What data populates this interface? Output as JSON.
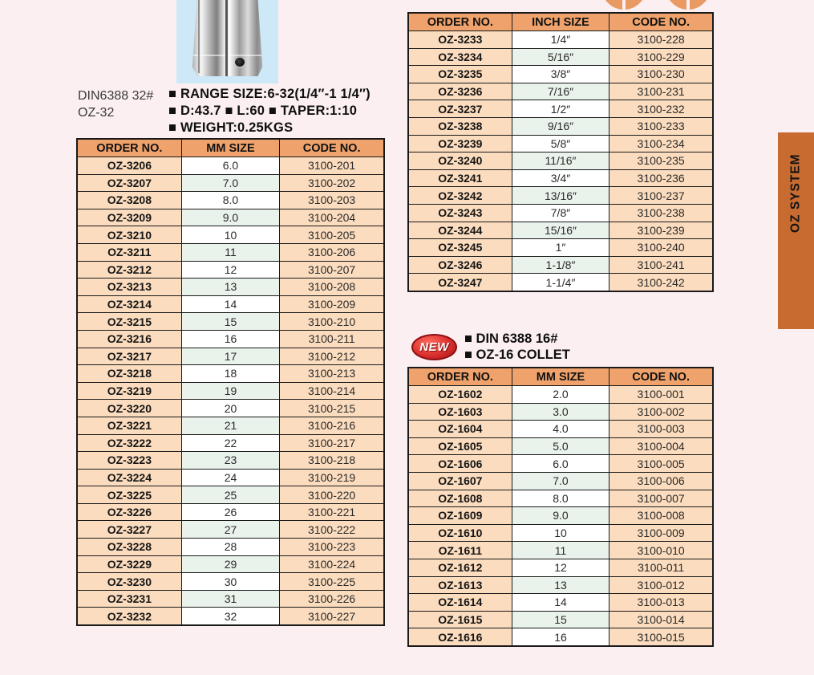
{
  "product": {
    "model_line1": "DIN6388 32#",
    "model_line2": "OZ-32",
    "specs": [
      "■ RANGE SIZE:6-32(1/4″-1 1/4″)",
      "■ D:43.7  ■ L:60  ■ TAPER:1:10",
      "■ WEIGHT:0.25KGS"
    ]
  },
  "new_section": {
    "badge": "NEW",
    "line1": "■ DIN 6388 16#",
    "line2": "■ OZ-16 COLLET"
  },
  "side_tab": {
    "label": "OZ SYSTEM"
  },
  "colors": {
    "page_bg": "#FBEFF1",
    "table_header_bg": "#EFA26B",
    "row_peach_bg": "#FBDCBE",
    "row_alt_green_bg": "#E9F3EC",
    "side_tab_bg": "#C76B31",
    "new_badge_red": "#C11E22",
    "photo_bg": "#CDE9F8"
  },
  "tables": [
    {
      "id": "oz32-mm",
      "headers": [
        "ORDER NO.",
        "MM SIZE",
        "CODE NO."
      ],
      "rows": [
        [
          "OZ-3206",
          "6.0",
          "3100-201"
        ],
        [
          "OZ-3207",
          "7.0",
          "3100-202"
        ],
        [
          "OZ-3208",
          "8.0",
          "3100-203"
        ],
        [
          "OZ-3209",
          "9.0",
          "3100-204"
        ],
        [
          "OZ-3210",
          "10",
          "3100-205"
        ],
        [
          "OZ-3211",
          "11",
          "3100-206"
        ],
        [
          "OZ-3212",
          "12",
          "3100-207"
        ],
        [
          "OZ-3213",
          "13",
          "3100-208"
        ],
        [
          "OZ-3214",
          "14",
          "3100-209"
        ],
        [
          "OZ-3215",
          "15",
          "3100-210"
        ],
        [
          "OZ-3216",
          "16",
          "3100-211"
        ],
        [
          "OZ-3217",
          "17",
          "3100-212"
        ],
        [
          "OZ-3218",
          "18",
          "3100-213"
        ],
        [
          "OZ-3219",
          "19",
          "3100-214"
        ],
        [
          "OZ-3220",
          "20",
          "3100-215"
        ],
        [
          "OZ-3221",
          "21",
          "3100-216"
        ],
        [
          "OZ-3222",
          "22",
          "3100-217"
        ],
        [
          "OZ-3223",
          "23",
          "3100-218"
        ],
        [
          "OZ-3224",
          "24",
          "3100-219"
        ],
        [
          "OZ-3225",
          "25",
          "3100-220"
        ],
        [
          "OZ-3226",
          "26",
          "3100-221"
        ],
        [
          "OZ-3227",
          "27",
          "3100-222"
        ],
        [
          "OZ-3228",
          "28",
          "3100-223"
        ],
        [
          "OZ-3229",
          "29",
          "3100-224"
        ],
        [
          "OZ-3230",
          "30",
          "3100-225"
        ],
        [
          "OZ-3231",
          "31",
          "3100-226"
        ],
        [
          "OZ-3232",
          "32",
          "3100-227"
        ]
      ]
    },
    {
      "id": "oz32-inch",
      "headers": [
        "ORDER NO.",
        "INCH SIZE",
        "CODE NO."
      ],
      "rows": [
        [
          "OZ-3233",
          "1/4″",
          "3100-228"
        ],
        [
          "OZ-3234",
          "5/16″",
          "3100-229"
        ],
        [
          "OZ-3235",
          "3/8″",
          "3100-230"
        ],
        [
          "OZ-3236",
          "7/16″",
          "3100-231"
        ],
        [
          "OZ-3237",
          "1/2″",
          "3100-232"
        ],
        [
          "OZ-3238",
          "9/16″",
          "3100-233"
        ],
        [
          "OZ-3239",
          "5/8″",
          "3100-234"
        ],
        [
          "OZ-3240",
          "11/16″",
          "3100-235"
        ],
        [
          "OZ-3241",
          "3/4″",
          "3100-236"
        ],
        [
          "OZ-3242",
          "13/16″",
          "3100-237"
        ],
        [
          "OZ-3243",
          "7/8″",
          "3100-238"
        ],
        [
          "OZ-3244",
          "15/16″",
          "3100-239"
        ],
        [
          "OZ-3245",
          "1″",
          "3100-240"
        ],
        [
          "OZ-3246",
          "1-1/8″",
          "3100-241"
        ],
        [
          "OZ-3247",
          "1-1/4″",
          "3100-242"
        ]
      ]
    },
    {
      "id": "oz16-mm",
      "headers": [
        "ORDER NO.",
        "MM SIZE",
        "CODE NO."
      ],
      "rows": [
        [
          "OZ-1602",
          "2.0",
          "3100-001"
        ],
        [
          "OZ-1603",
          "3.0",
          "3100-002"
        ],
        [
          "OZ-1604",
          "4.0",
          "3100-003"
        ],
        [
          "OZ-1605",
          "5.0",
          "3100-004"
        ],
        [
          "OZ-1606",
          "6.0",
          "3100-005"
        ],
        [
          "OZ-1607",
          "7.0",
          "3100-006"
        ],
        [
          "OZ-1608",
          "8.0",
          "3100-007"
        ],
        [
          "OZ-1609",
          "9.0",
          "3100-008"
        ],
        [
          "OZ-1610",
          "10",
          "3100-009"
        ],
        [
          "OZ-1611",
          "11",
          "3100-010"
        ],
        [
          "OZ-1612",
          "12",
          "3100-011"
        ],
        [
          "OZ-1613",
          "13",
          "3100-012"
        ],
        [
          "OZ-1614",
          "14",
          "3100-013"
        ],
        [
          "OZ-1615",
          "15",
          "3100-014"
        ],
        [
          "OZ-1616",
          "16",
          "3100-015"
        ]
      ]
    }
  ]
}
